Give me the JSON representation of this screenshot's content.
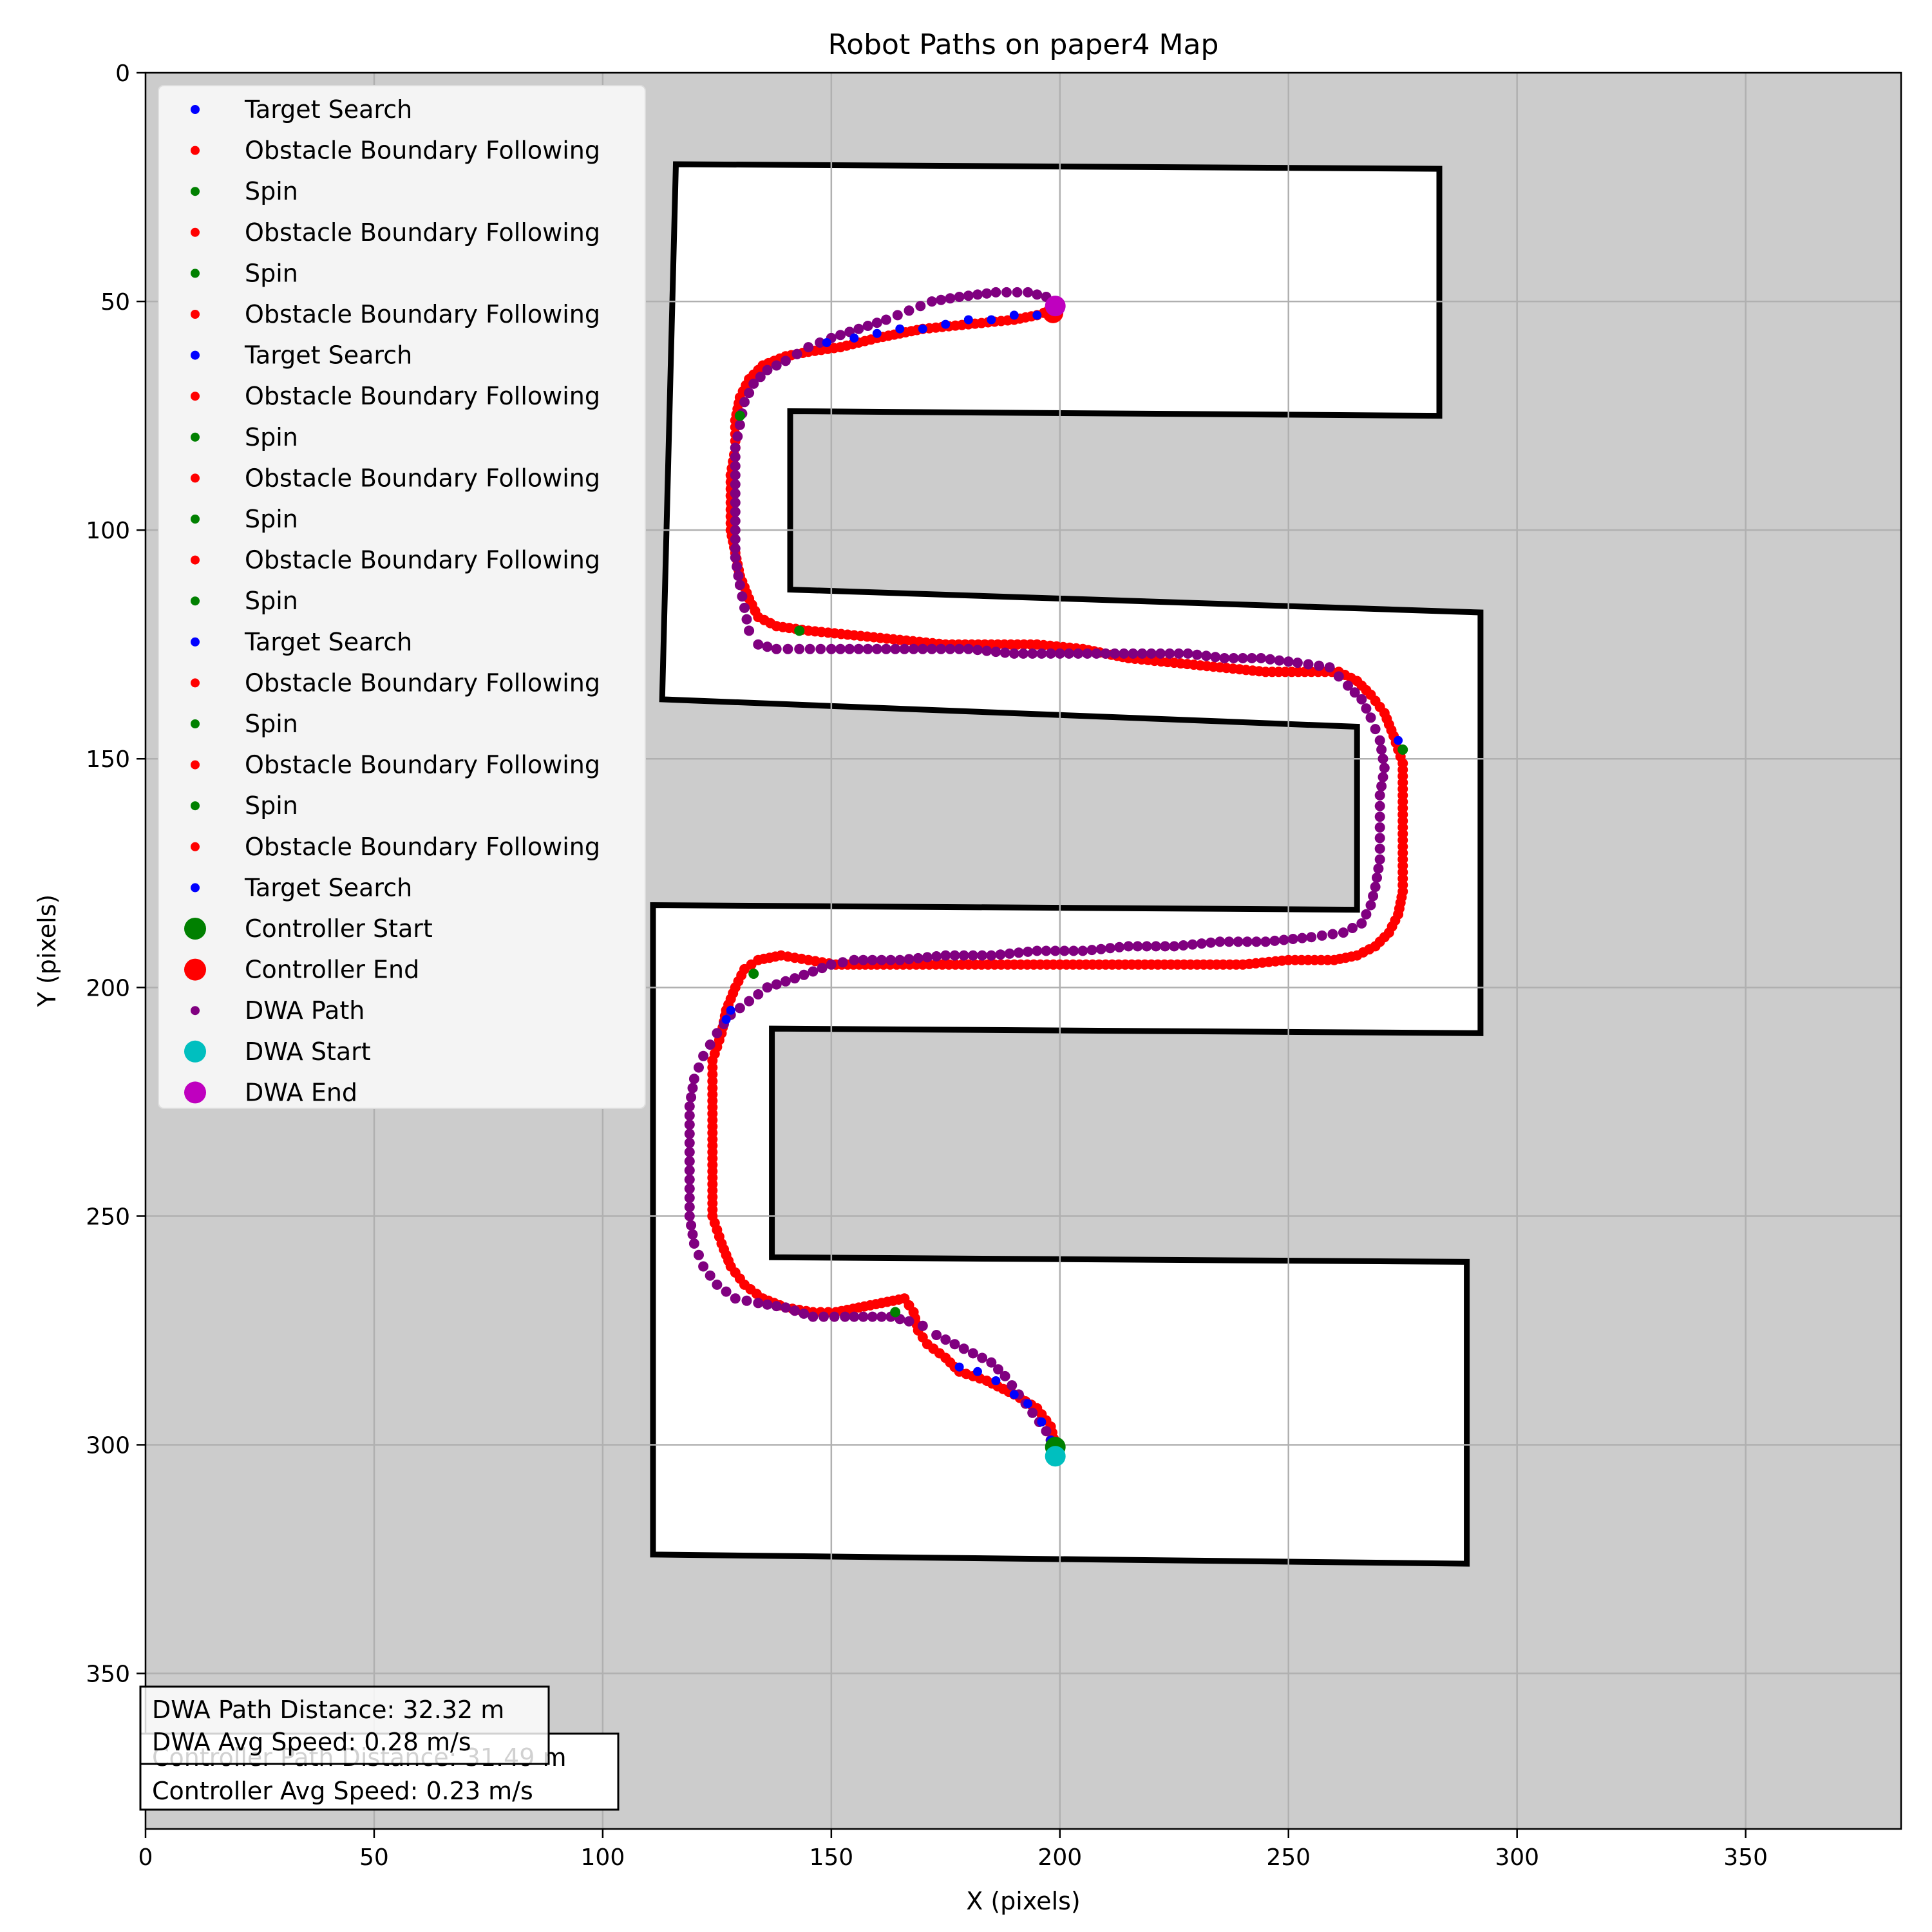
{
  "chart_data": {
    "type": "scatter",
    "title": "Robot Paths on paper4 Map",
    "xlabel": "X (pixels)",
    "ylabel": "Y (pixels)",
    "xlim": [
      0,
      384
    ],
    "ylim": [
      384,
      0
    ],
    "y_inverted": true,
    "grid": true,
    "xticks": [
      0,
      50,
      100,
      150,
      200,
      250,
      300,
      350
    ],
    "yticks": [
      0,
      50,
      100,
      150,
      200,
      250,
      300,
      350
    ],
    "legend_position": "top-left",
    "legend": [
      {
        "label": "Target Search",
        "color": "#0000ff",
        "marker": "small"
      },
      {
        "label": "Obstacle Boundary Following",
        "color": "#ff0000",
        "marker": "small"
      },
      {
        "label": "Spin",
        "color": "#008000",
        "marker": "small"
      },
      {
        "label": "Obstacle Boundary Following",
        "color": "#ff0000",
        "marker": "small"
      },
      {
        "label": "Spin",
        "color": "#008000",
        "marker": "small"
      },
      {
        "label": "Obstacle Boundary Following",
        "color": "#ff0000",
        "marker": "small"
      },
      {
        "label": "Target Search",
        "color": "#0000ff",
        "marker": "small"
      },
      {
        "label": "Obstacle Boundary Following",
        "color": "#ff0000",
        "marker": "small"
      },
      {
        "label": "Spin",
        "color": "#008000",
        "marker": "small"
      },
      {
        "label": "Obstacle Boundary Following",
        "color": "#ff0000",
        "marker": "small"
      },
      {
        "label": "Spin",
        "color": "#008000",
        "marker": "small"
      },
      {
        "label": "Obstacle Boundary Following",
        "color": "#ff0000",
        "marker": "small"
      },
      {
        "label": "Spin",
        "color": "#008000",
        "marker": "small"
      },
      {
        "label": "Target Search",
        "color": "#0000ff",
        "marker": "small"
      },
      {
        "label": "Obstacle Boundary Following",
        "color": "#ff0000",
        "marker": "small"
      },
      {
        "label": "Spin",
        "color": "#008000",
        "marker": "small"
      },
      {
        "label": "Obstacle Boundary Following",
        "color": "#ff0000",
        "marker": "small"
      },
      {
        "label": "Spin",
        "color": "#008000",
        "marker": "small"
      },
      {
        "label": "Obstacle Boundary Following",
        "color": "#ff0000",
        "marker": "small"
      },
      {
        "label": "Target Search",
        "color": "#0000ff",
        "marker": "small"
      },
      {
        "label": "Controller Start",
        "color": "#008000",
        "marker": "large"
      },
      {
        "label": "Controller End",
        "color": "#ff0000",
        "marker": "large"
      },
      {
        "label": "DWA Path",
        "color": "#800080",
        "marker": "small"
      },
      {
        "label": "DWA Start",
        "color": "#00bfbf",
        "marker": "large"
      },
      {
        "label": "DWA End",
        "color": "#bf00bf",
        "marker": "large"
      }
    ],
    "map_walls": [
      [
        [
          116,
          20
        ],
        [
          283,
          21
        ],
        [
          283,
          75
        ],
        [
          141,
          74
        ],
        [
          141,
          113
        ],
        [
          292,
          118
        ],
        [
          292,
          210
        ],
        [
          137,
          209
        ],
        [
          137,
          259
        ],
        [
          289,
          260
        ],
        [
          289,
          326
        ],
        [
          111,
          324
        ],
        [
          111,
          182
        ],
        [
          265,
          183
        ],
        [
          265,
          143
        ],
        [
          113,
          137
        ],
        [
          116,
          20
        ]
      ]
    ],
    "series": [
      {
        "name": "Controller Path",
        "color": "#ff0000",
        "points": [
          [
            199,
            300
          ],
          [
            198,
            296
          ],
          [
            195,
            292
          ],
          [
            190,
            289
          ],
          [
            184,
            286
          ],
          [
            178,
            284
          ],
          [
            175,
            281
          ],
          [
            171,
            278
          ],
          [
            169,
            275
          ],
          [
            168,
            271
          ],
          [
            166,
            268
          ],
          [
            161,
            269
          ],
          [
            156,
            270
          ],
          [
            151,
            271
          ],
          [
            146,
            271
          ],
          [
            140,
            270
          ],
          [
            135,
            268
          ],
          [
            131,
            265
          ],
          [
            128,
            261
          ],
          [
            126,
            256
          ],
          [
            124,
            250
          ],
          [
            124,
            243
          ],
          [
            124,
            236
          ],
          [
            124,
            229
          ],
          [
            124,
            222
          ],
          [
            124,
            216
          ],
          [
            126,
            210
          ],
          [
            127,
            205
          ],
          [
            129,
            200
          ],
          [
            131,
            196
          ],
          [
            134,
            194
          ],
          [
            139,
            193
          ],
          [
            145,
            194
          ],
          [
            151,
            195
          ],
          [
            160,
            195
          ],
          [
            170,
            195
          ],
          [
            180,
            195
          ],
          [
            190,
            195
          ],
          [
            200,
            195
          ],
          [
            210,
            195
          ],
          [
            220,
            195
          ],
          [
            230,
            195
          ],
          [
            240,
            195
          ],
          [
            250,
            194
          ],
          [
            260,
            194
          ],
          [
            265,
            193
          ],
          [
            269,
            191
          ],
          [
            272,
            188
          ],
          [
            274,
            184
          ],
          [
            275,
            179
          ],
          [
            275,
            172
          ],
          [
            275,
            165
          ],
          [
            275,
            158
          ],
          [
            275,
            151
          ],
          [
            273,
            145
          ],
          [
            271,
            140
          ],
          [
            268,
            136
          ],
          [
            265,
            133
          ],
          [
            261,
            131
          ],
          [
            255,
            131
          ],
          [
            245,
            131
          ],
          [
            235,
            130
          ],
          [
            225,
            129
          ],
          [
            215,
            128
          ],
          [
            205,
            126
          ],
          [
            195,
            125
          ],
          [
            185,
            125
          ],
          [
            175,
            125
          ],
          [
            165,
            124
          ],
          [
            155,
            123
          ],
          [
            145,
            122
          ],
          [
            138,
            121
          ],
          [
            134,
            119
          ],
          [
            132,
            115
          ],
          [
            130,
            110
          ],
          [
            129,
            105
          ],
          [
            128,
            100
          ],
          [
            128,
            94
          ],
          [
            128,
            88
          ],
          [
            129,
            82
          ],
          [
            129,
            76
          ],
          [
            130,
            71
          ],
          [
            132,
            67
          ],
          [
            135,
            64
          ],
          [
            140,
            62
          ],
          [
            145,
            61
          ],
          [
            152,
            60
          ],
          [
            160,
            58
          ],
          [
            170,
            56
          ],
          [
            180,
            55
          ],
          [
            190,
            54
          ],
          [
            195,
            53
          ],
          [
            198,
            52
          ]
        ]
      },
      {
        "name": "DWA Path",
        "color": "#800080",
        "points": [
          [
            199,
            301
          ],
          [
            197,
            297
          ],
          [
            194,
            293
          ],
          [
            191,
            289
          ],
          [
            188,
            285
          ],
          [
            185,
            282
          ],
          [
            181,
            280
          ],
          [
            177,
            278
          ],
          [
            173,
            276
          ],
          [
            170,
            274
          ],
          [
            167,
            273
          ],
          [
            163,
            272
          ],
          [
            159,
            272
          ],
          [
            153,
            272
          ],
          [
            146,
            272
          ],
          [
            140,
            270
          ],
          [
            134,
            269
          ],
          [
            129,
            268
          ],
          [
            125,
            265
          ],
          [
            122,
            261
          ],
          [
            120,
            256
          ],
          [
            119,
            250
          ],
          [
            119,
            244
          ],
          [
            119,
            238
          ],
          [
            119,
            232
          ],
          [
            119,
            226
          ],
          [
            120,
            220
          ],
          [
            122,
            215
          ],
          [
            125,
            210
          ],
          [
            128,
            206
          ],
          [
            132,
            203
          ],
          [
            136,
            200
          ],
          [
            142,
            198
          ],
          [
            150,
            195
          ],
          [
            155,
            194
          ],
          [
            165,
            194
          ],
          [
            175,
            193
          ],
          [
            185,
            193
          ],
          [
            195,
            192
          ],
          [
            205,
            192
          ],
          [
            215,
            191
          ],
          [
            225,
            191
          ],
          [
            235,
            190
          ],
          [
            245,
            190
          ],
          [
            255,
            189
          ],
          [
            262,
            188
          ],
          [
            266,
            186
          ],
          [
            268,
            182
          ],
          [
            269,
            178
          ],
          [
            270,
            172
          ],
          [
            270,
            165
          ],
          [
            270,
            158
          ],
          [
            271,
            152
          ],
          [
            270,
            146
          ],
          [
            268,
            141
          ],
          [
            266,
            137
          ],
          [
            263,
            134
          ],
          [
            259,
            130
          ],
          [
            252,
            129
          ],
          [
            244,
            128
          ],
          [
            236,
            128
          ],
          [
            228,
            127
          ],
          [
            220,
            127
          ],
          [
            210,
            127
          ],
          [
            200,
            127
          ],
          [
            190,
            127
          ],
          [
            180,
            126
          ],
          [
            170,
            126
          ],
          [
            160,
            126
          ],
          [
            150,
            126
          ],
          [
            143,
            126
          ],
          [
            138,
            126
          ],
          [
            134,
            125
          ],
          [
            132,
            122
          ],
          [
            131,
            117
          ],
          [
            130,
            112
          ],
          [
            129,
            106
          ],
          [
            129,
            100
          ],
          [
            129,
            94
          ],
          [
            129,
            88
          ],
          [
            129,
            82
          ],
          [
            130,
            77
          ],
          [
            131,
            72
          ],
          [
            133,
            68
          ],
          [
            136,
            65
          ],
          [
            140,
            63
          ],
          [
            145,
            60
          ],
          [
            150,
            58
          ],
          [
            156,
            56
          ],
          [
            162,
            54
          ],
          [
            167,
            52
          ],
          [
            172,
            50
          ],
          [
            178,
            49
          ],
          [
            186,
            48
          ],
          [
            193,
            48
          ],
          [
            197,
            49
          ],
          [
            199,
            51
          ]
        ]
      },
      {
        "name": "Target Search",
        "color": "#0000ff",
        "points": [
          [
            198,
            299
          ],
          [
            196,
            295
          ],
          [
            193,
            291
          ],
          [
            190,
            289
          ],
          [
            186,
            286
          ],
          [
            182,
            284
          ],
          [
            178,
            283
          ],
          [
            127,
            207
          ],
          [
            128,
            205
          ],
          [
            274,
            146
          ],
          [
            149,
            59
          ],
          [
            155,
            58
          ],
          [
            160,
            57
          ],
          [
            165,
            56
          ],
          [
            170,
            56
          ],
          [
            175,
            55
          ],
          [
            180,
            54
          ],
          [
            185,
            54
          ],
          [
            190,
            53
          ],
          [
            195,
            53
          ]
        ]
      },
      {
        "name": "Spin",
        "color": "#008000",
        "points": [
          [
            164,
            271
          ],
          [
            133,
            197
          ],
          [
            275,
            148
          ],
          [
            143,
            122
          ],
          [
            130,
            75
          ]
        ]
      }
    ],
    "markers": [
      {
        "label": "Controller Start",
        "x": 199,
        "y": 300.5,
        "color": "#008000"
      },
      {
        "label": "Controller End",
        "x": 198.5,
        "y": 52.5,
        "color": "#ff0000"
      },
      {
        "label": "DWA Start",
        "x": 199,
        "y": 302.5,
        "color": "#00bfbf"
      },
      {
        "label": "DWA End",
        "x": 199,
        "y": 51,
        "color": "#bf00bf"
      }
    ],
    "annotations": [
      "DWA Path Distance: 32.32 m",
      "DWA Avg Speed: 0.28 m/s",
      "Controller Path Distance: 31.49 m",
      "Controller Avg Speed: 0.23 m/s"
    ]
  }
}
